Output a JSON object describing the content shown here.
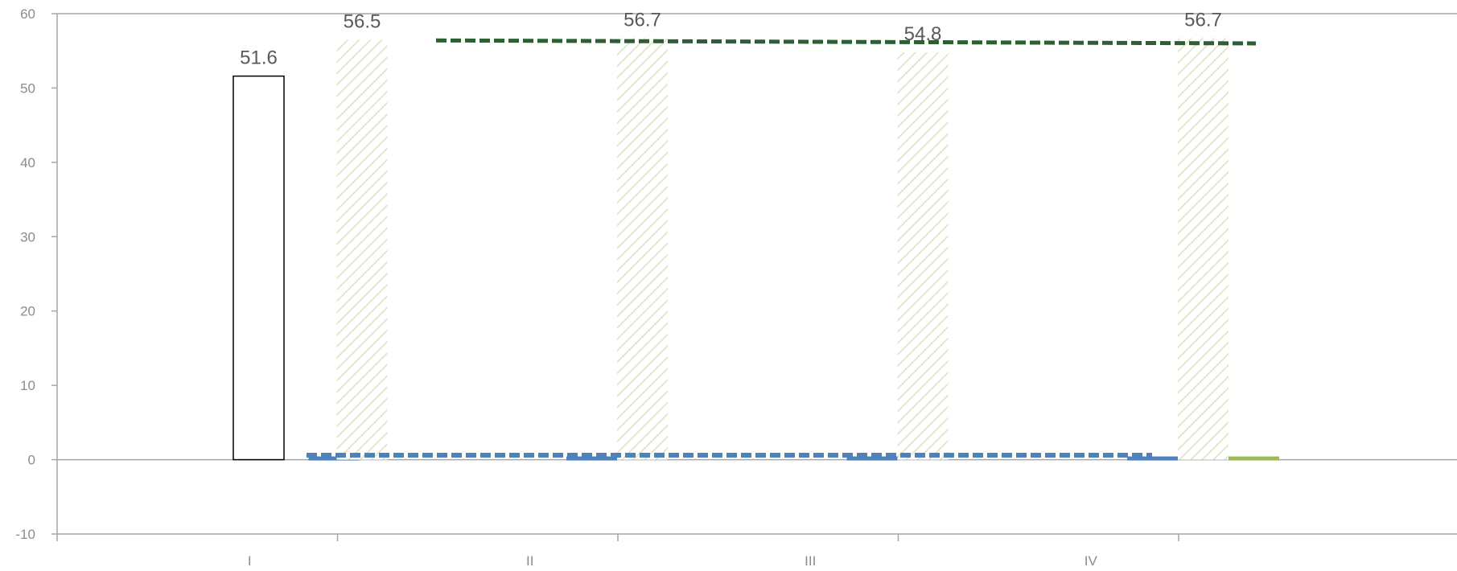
{
  "chart_data": {
    "type": "bar",
    "categories": [
      "I",
      "II",
      "III",
      "IV"
    ],
    "ylim": [
      -10,
      60
    ],
    "yticks": [
      -10,
      0,
      10,
      20,
      30,
      40,
      50,
      60
    ],
    "title": "",
    "xlabel": "",
    "ylabel": "",
    "bars": [
      {
        "category": "I",
        "value": 51.6,
        "style": "outline",
        "label": "51.6"
      },
      {
        "category": "I",
        "value": 0.4,
        "style": "blue"
      },
      {
        "category": "I",
        "value": 56.5,
        "style": "hatched",
        "label": "56.5"
      },
      {
        "category": "II",
        "value": 0.4,
        "style": "blue"
      },
      {
        "category": "II",
        "value": 56.7,
        "style": "hatched",
        "label": "56.7"
      },
      {
        "category": "III",
        "value": 0.4,
        "style": "blue"
      },
      {
        "category": "III",
        "value": 54.8,
        "style": "hatched",
        "label": "54.8"
      },
      {
        "category": "IV",
        "value": 0.4,
        "style": "blue"
      },
      {
        "category": "IV",
        "value": 56.7,
        "style": "hatched",
        "label": "56.7"
      },
      {
        "category": "IV",
        "value": 0.4,
        "style": "green"
      }
    ],
    "lines": [
      {
        "style": "dashed-dark-green",
        "points": [
          [
            "I",
            56.4
          ],
          [
            "IV",
            56.0
          ]
        ]
      },
      {
        "style": "dashed-blue",
        "points": [
          [
            "I",
            0.6
          ],
          [
            "IV",
            0.6
          ]
        ]
      }
    ],
    "grid": false,
    "colors": {
      "outline_bar": "#000000",
      "blue": "#4f81bd",
      "hatch": "#d7e4bd",
      "green": "#9bbb59",
      "dashed_dark_green": "#2e5e34",
      "dashed_blue": "#4f81bd",
      "axis": "#a6a6a6"
    }
  }
}
